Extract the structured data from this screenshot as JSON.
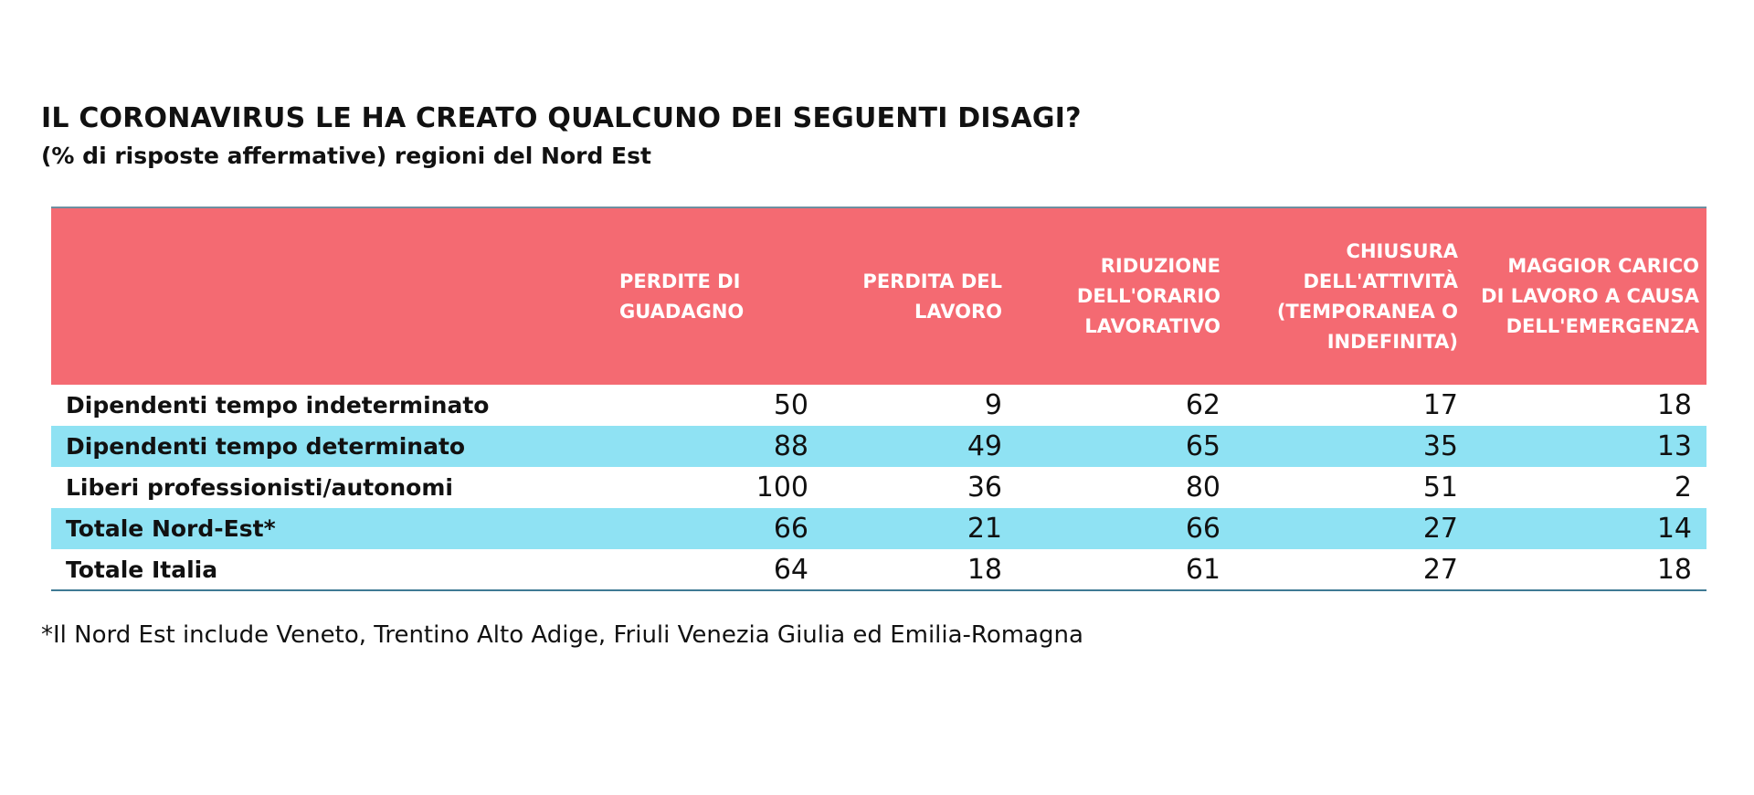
{
  "title": "IL CORONAVIRUS LE HA CREATO QUALCUNO DEI SEGUENTI DISAGI?",
  "subtitle": "(% di risposte affermative) regioni del Nord Est",
  "footnote": "*Il Nord Est include Veneto, Trentino Alto Adige, Friuli Venezia Giulia ed Emilia-Romagna",
  "colors": {
    "header_bg": "#f46a72",
    "header_text": "#ffffff",
    "row_highlight": "#8fe2f3",
    "rule": "#3f7a94"
  },
  "chart_data": {
    "type": "table",
    "title": "IL CORONAVIRUS LE HA CREATO QUALCUNO DEI SEGUENTI DISAGI?",
    "subtitle": "(% di risposte affermative) regioni del Nord Est",
    "columns": [
      "PERDITE DI GUADAGNO",
      "PERDITA DEL LAVORO",
      "RIDUZIONE DELL'ORARIO LAVORATIVO",
      "CHIUSURA DELL'ATTIVITÀ (TEMPORANEA O INDEFINITA)",
      "MAGGIOR CARICO DI LAVORO A CAUSA DELL'EMERGENZA"
    ],
    "rows": [
      {
        "label": "Dipendenti tempo indeterminato",
        "values": [
          "50",
          "9",
          "62",
          "17",
          "18"
        ],
        "highlight": false
      },
      {
        "label": "Dipendenti tempo determinato",
        "values": [
          "88",
          "49",
          "65",
          "35",
          "13"
        ],
        "highlight": true
      },
      {
        "label": "Liberi professionisti/autonomi",
        "values": [
          "100",
          "36",
          "80",
          "51",
          "2"
        ],
        "highlight": false
      },
      {
        "label": "Totale Nord-Est*",
        "values": [
          "66",
          "21",
          "66",
          "27",
          "14"
        ],
        "highlight": true
      },
      {
        "label": "Totale Italia",
        "values": [
          "64",
          "18",
          "61",
          "27",
          "18"
        ],
        "highlight": false
      }
    ]
  }
}
